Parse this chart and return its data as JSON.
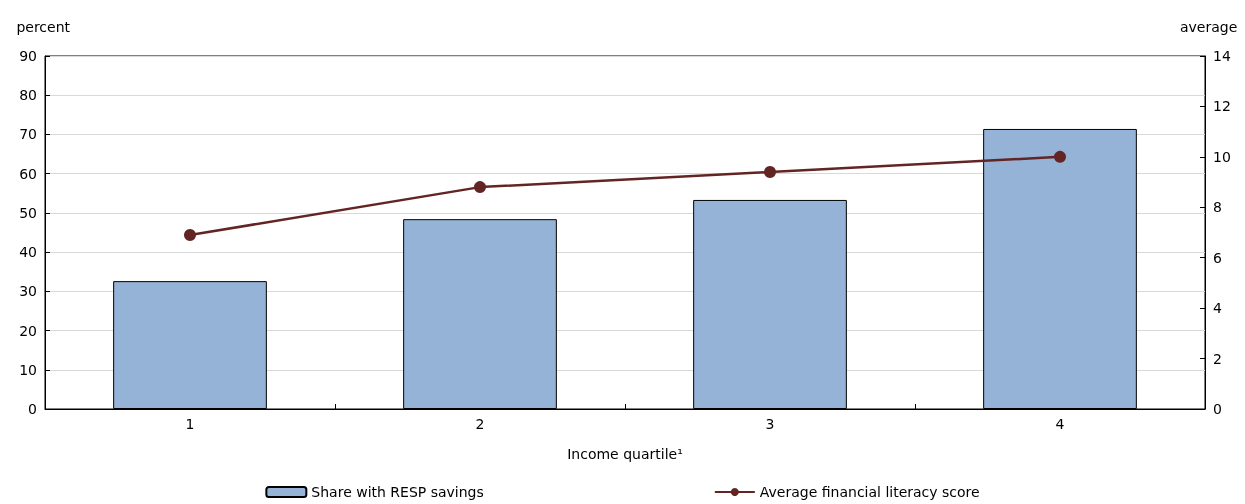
{
  "chart_data": {
    "type": "bar",
    "categories": [
      "1",
      "2",
      "3",
      "4"
    ],
    "xlabel": "Income quartile¹",
    "ylabel": "percent",
    "y2label": "average",
    "ylim": [
      0,
      90
    ],
    "yticks": [
      0,
      10,
      20,
      30,
      40,
      50,
      60,
      70,
      80,
      90
    ],
    "y2lim": [
      0,
      14
    ],
    "y2ticks": [
      0,
      2,
      4,
      6,
      8,
      10,
      12,
      14
    ],
    "series": [
      {
        "name": "Share with RESP savings",
        "color": "#95b3d7",
        "values": [
          32.6,
          48.4,
          53.3,
          71.4
        ]
      },
      {
        "name": "Average financial literacy score",
        "type": "line",
        "axis": "y2",
        "color": "#632523",
        "marker": "circle",
        "values": [
          6.9,
          8.8,
          9.4,
          10.0
        ]
      }
    ],
    "grid": "y",
    "legend": "bottom"
  }
}
